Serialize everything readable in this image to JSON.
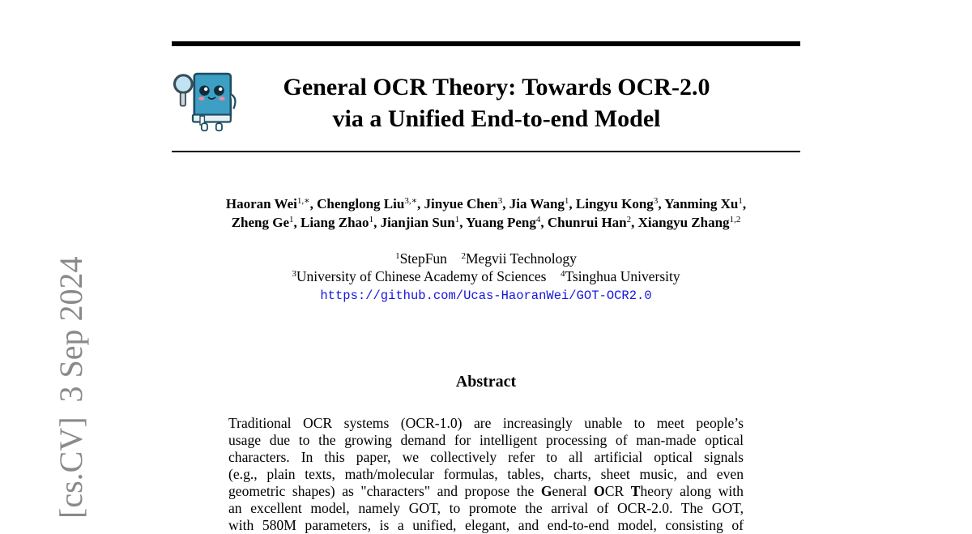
{
  "sidebar": {
    "category": "[cs.CV]",
    "date": "3 Sep 2024"
  },
  "logo": {
    "icon": "book-mascot-with-magnifier-icon"
  },
  "title": {
    "line1": "General OCR Theory: Towards OCR-2.0",
    "line2": "via a Unified End-to-end Model"
  },
  "authors": {
    "line1": [
      {
        "name": "Haoran Wei",
        "sup": "1,∗",
        "sep": ", "
      },
      {
        "name": "Chenglong Liu",
        "sup": "3,∗",
        "sep": ", "
      },
      {
        "name": "Jinyue Chen",
        "sup": "3",
        "sep": ", "
      },
      {
        "name": "Jia Wang",
        "sup": "1",
        "sep": ", "
      },
      {
        "name": "Lingyu Kong",
        "sup": "3",
        "sep": ", "
      },
      {
        "name": "Yanming Xu",
        "sup": "1",
        "sep": ","
      }
    ],
    "line2": [
      {
        "name": "Zheng Ge",
        "sup": "1",
        "sep": ", "
      },
      {
        "name": "Liang Zhao",
        "sup": "1",
        "sep": ", "
      },
      {
        "name": "Jianjian Sun",
        "sup": "1",
        "sep": ", "
      },
      {
        "name": "Yuang Peng",
        "sup": "4",
        "sep": ", "
      },
      {
        "name": "Chunrui Han",
        "sup": "2",
        "sep": ", "
      },
      {
        "name": "Xiangyu Zhang",
        "sup": "1,2",
        "sep": ""
      }
    ]
  },
  "affiliations": {
    "a1": {
      "sup": "1",
      "name": "StepFun"
    },
    "a2": {
      "sup": "2",
      "name": "Megvii Technology"
    },
    "a3": {
      "sup": "3",
      "name": "University of Chinese Academy of Sciences"
    },
    "a4": {
      "sup": "4",
      "name": "Tsinghua University"
    },
    "url": "https://github.com/Ucas-HaoranWei/GOT-OCR2.0"
  },
  "abstract": {
    "heading": "Abstract",
    "lines": [
      "Traditional OCR systems (OCR-1.0) are increasingly unable to meet people’s",
      "usage due to the growing demand for intelligent processing of man-made optical",
      "characters.  In this paper, we collectively refer to all artificial optical signals",
      "(e.g., plain texts, math/molecular formulas, tables, charts, sheet music, and even",
      "",
      "an excellent model, namely GOT, to promote the arrival of OCR-2.0. The GOT,",
      "with 580M parameters, is a unified, elegant, and end-to-end model, consisting of"
    ],
    "line5": {
      "pre": "geometric shapes) as \"characters\" and propose the ",
      "g": "G",
      "eneral": "eneral ",
      "o": "O",
      "cr": "CR ",
      "t": "T",
      "post": "heory along with"
    }
  }
}
